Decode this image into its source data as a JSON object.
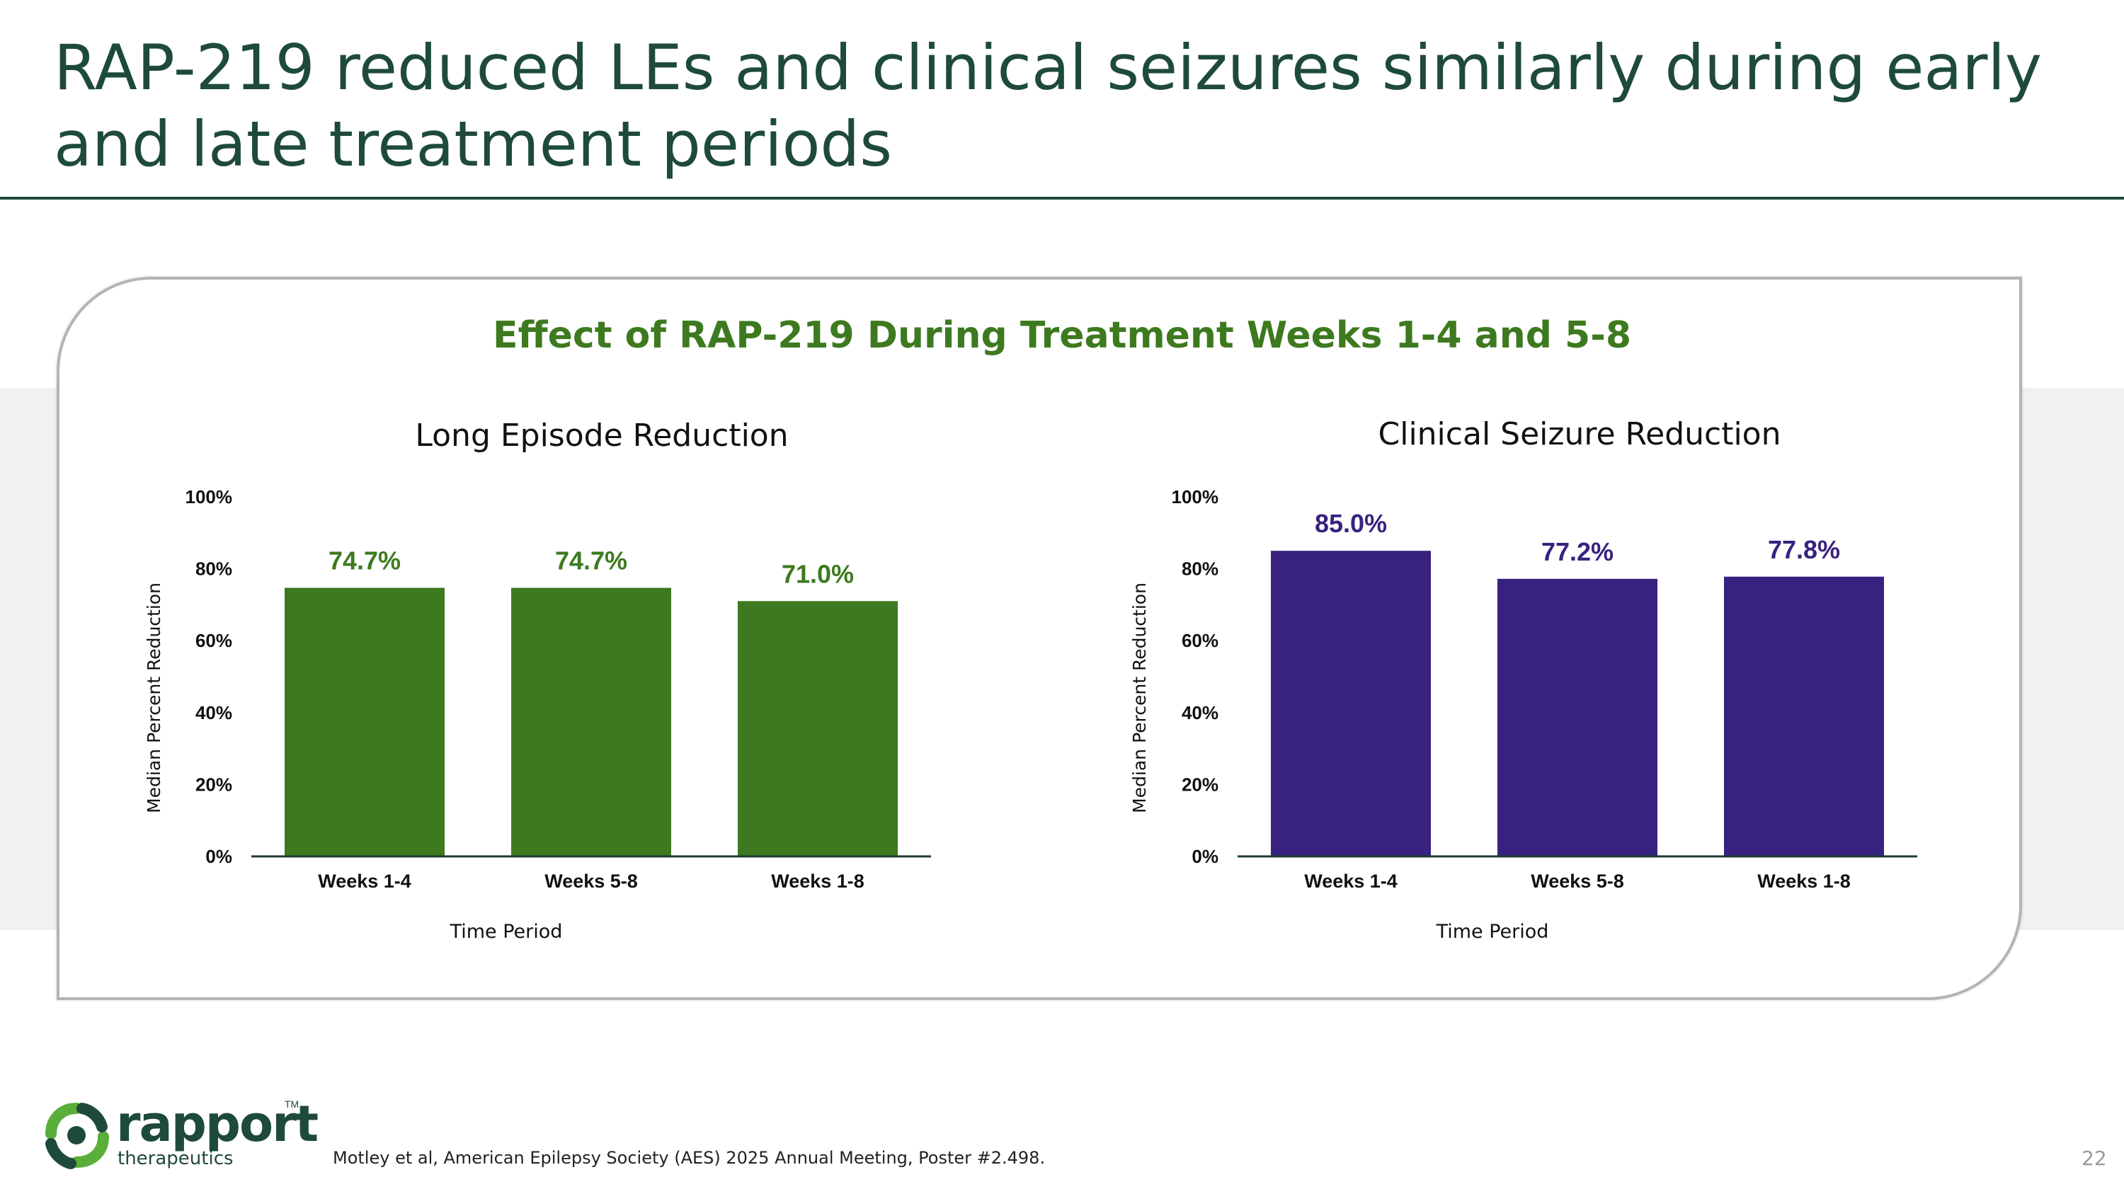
{
  "slide": {
    "title": "RAP-219 reduced LEs and clinical seizures similarly during early and late treatment periods",
    "card_title": "Effect of RAP-219 During Treatment Weeks 1-4 and 5-8",
    "footnote": "Motley et al, American Epilepsy Society (AES) 2025 Annual Meeting, Poster #2.498.",
    "page_number": "22",
    "logo": {
      "name": "rapport",
      "tagline": "therapeutics",
      "tm": "TM",
      "colors": {
        "green": "#5aae3a",
        "dark": "#1e4a3c"
      }
    },
    "colors": {
      "title": "#1e4a3c",
      "card_title": "#3d7a1f",
      "band": "#f1f1f1"
    }
  },
  "chart_data": [
    {
      "type": "bar",
      "title": "Long Episode Reduction",
      "categories": [
        "Weeks 1-4",
        "Weeks 5-8",
        "Weeks 1-8"
      ],
      "values": [
        74.7,
        74.7,
        71.0
      ],
      "value_labels": [
        "74.7%",
        "74.7%",
        "71.0%"
      ],
      "xlabel": "Time Period",
      "ylabel": "Median Percent Reduction",
      "ylim": [
        0,
        100
      ],
      "yticks": [
        "0%",
        "20%",
        "40%",
        "60%",
        "80%",
        "100%"
      ],
      "grid": false,
      "bar_color": "#3d7a1f",
      "label_color": "#3d7a1f"
    },
    {
      "type": "bar",
      "title": "Clinical Seizure Reduction",
      "categories": [
        "Weeks 1-4",
        "Weeks 5-8",
        "Weeks 1-8"
      ],
      "values": [
        85.0,
        77.2,
        77.8
      ],
      "value_labels": [
        "85.0%",
        "77.2%",
        "77.8%"
      ],
      "xlabel": "Time Period",
      "ylabel": "Median Percent Reduction",
      "ylim": [
        0,
        100
      ],
      "yticks": [
        "0%",
        "20%",
        "40%",
        "60%",
        "80%",
        "100%"
      ],
      "grid": false,
      "bar_color": "#38227f",
      "label_color": "#38227f"
    }
  ]
}
